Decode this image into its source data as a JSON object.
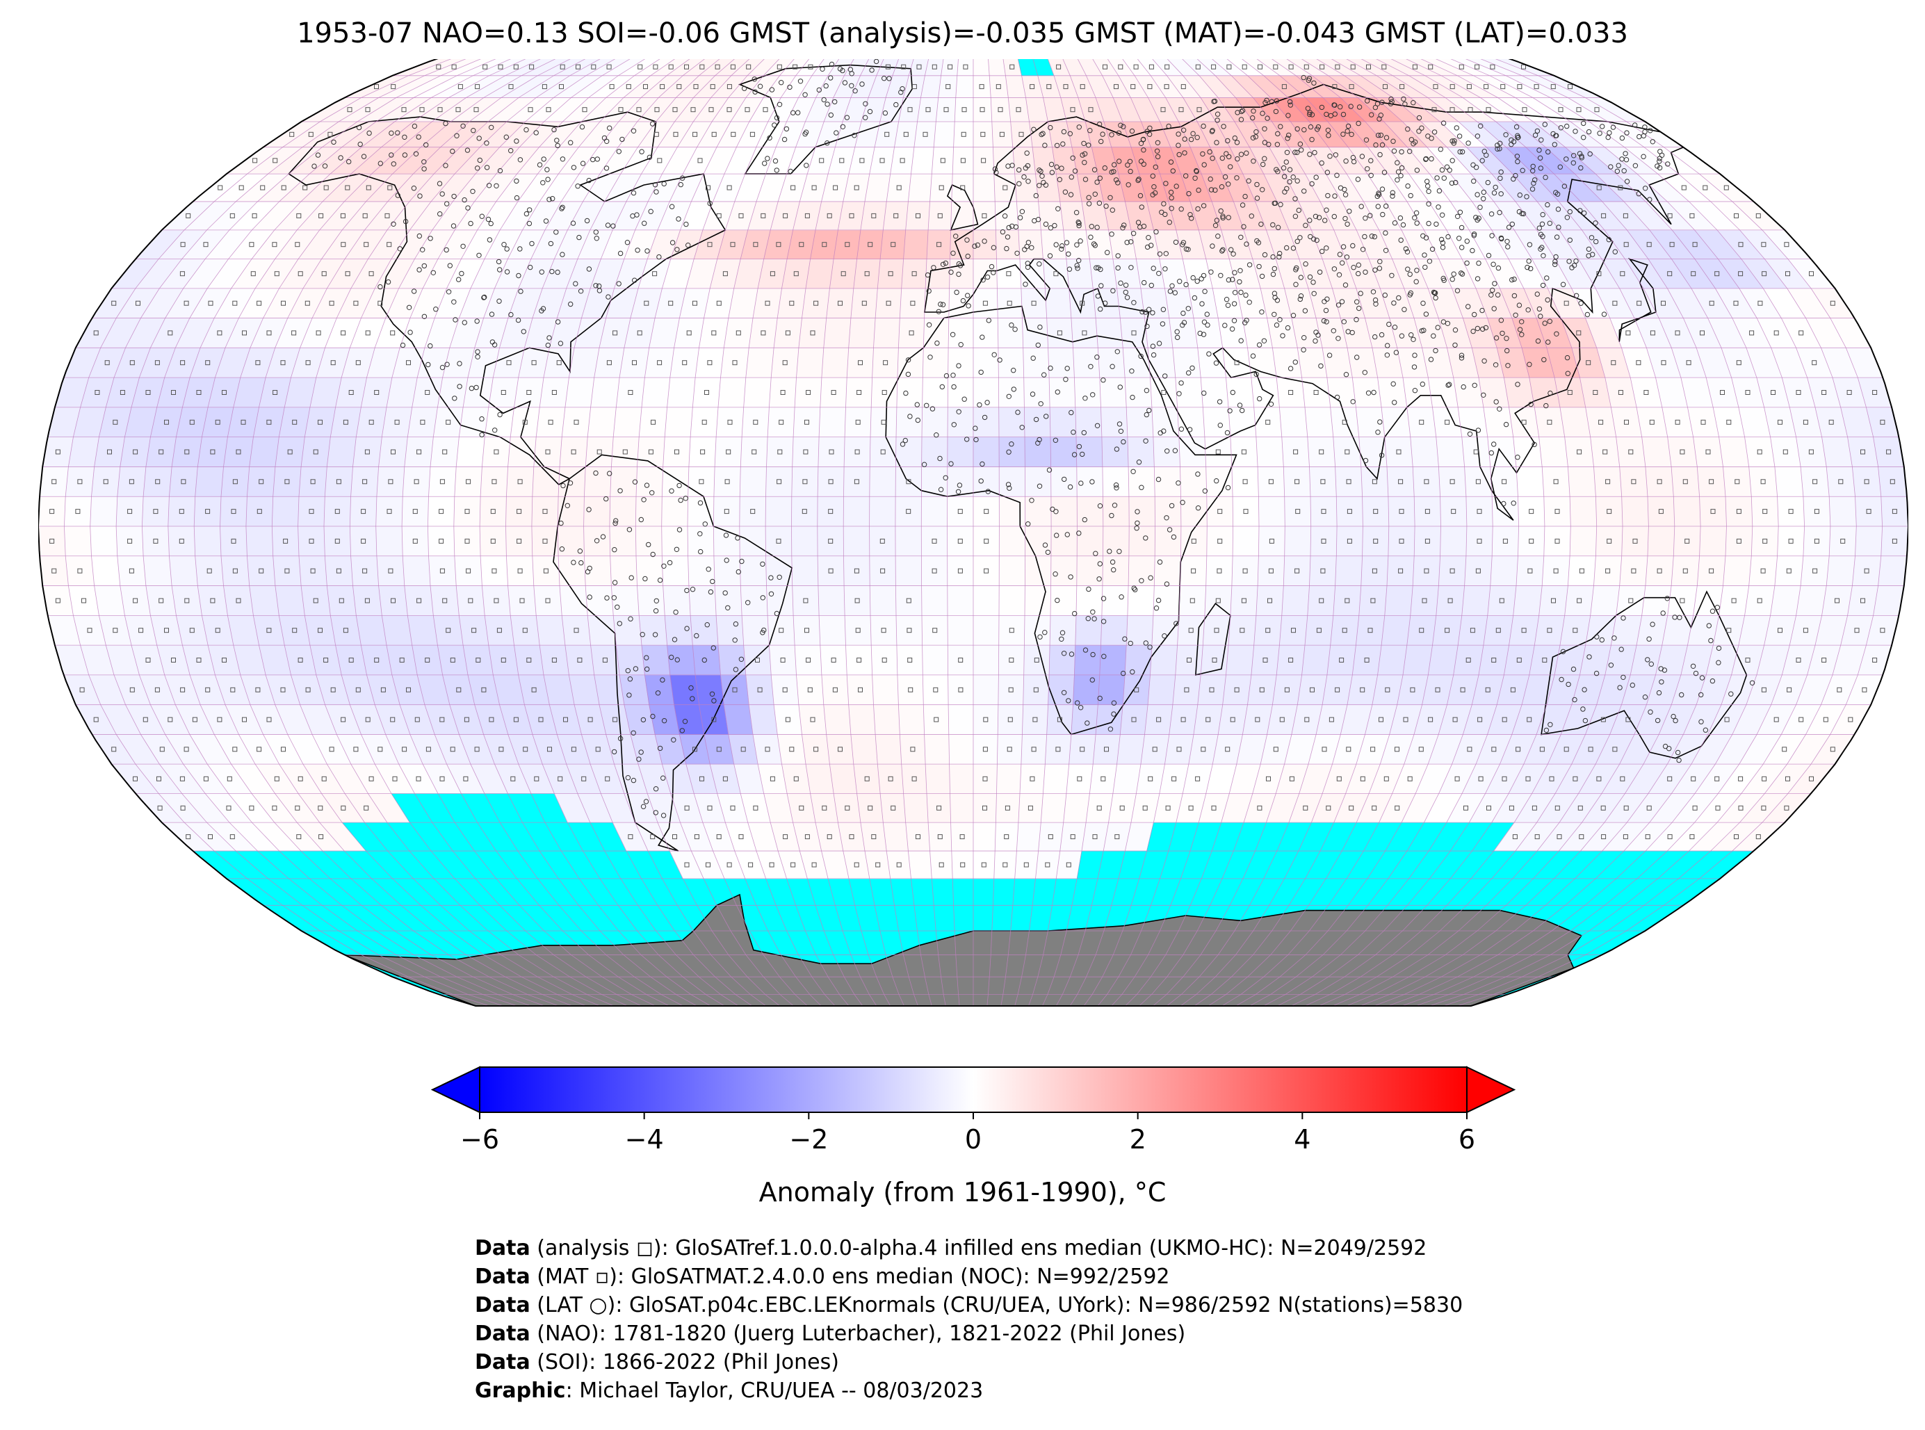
{
  "title": "1953-07 NAO=0.13 SOI=-0.06 GMST (analysis)=-0.035 GMST (MAT)=-0.043 GMST (LAT)=0.033",
  "colors": {
    "negative": "#0000ff",
    "neutral": "#ffffff",
    "positive": "#ff0000",
    "sea_ice": "#00ffff",
    "antarctica": "#808080",
    "grid": "#c080c0",
    "coastline": "#000000"
  },
  "colorbar": {
    "min": -6,
    "max": 6,
    "extend": "both",
    "ticks": [
      "−6",
      "−4",
      "−2",
      "0",
      "2",
      "4",
      "6"
    ],
    "label": "Anomaly (from 1961-1990), °C"
  },
  "map": {
    "projection": "robinson",
    "grid_resolution_deg": 5,
    "markers": {
      "analysis": "square",
      "mat": "small square",
      "lat": "circle"
    },
    "anomaly_regions": [
      {
        "region": "Eastern Europe / Western Russia",
        "anomaly_c": 2.5
      },
      {
        "region": "Northern Siberia",
        "anomaly_c": 3.0
      },
      {
        "region": "North-west Canada / Alaska",
        "anomaly_c": 1.0
      },
      {
        "region": "Southern South America",
        "anomaly_c": -3.5
      },
      {
        "region": "Southern Africa",
        "anomaly_c": -2.0
      },
      {
        "region": "Sahel",
        "anomaly_c": -1.5
      },
      {
        "region": "East Siberia",
        "anomaly_c": -2.0
      },
      {
        "region": "Eastern China",
        "anomaly_c": 2.0
      }
    ]
  },
  "credits": [
    {
      "key": "Data",
      "text": " (analysis ◻): GloSATref.1.0.0.0-alpha.4 infilled ens median (UKMO-HC): N=2049/2592"
    },
    {
      "key": "Data",
      "text": " (MAT ▫): GloSATMAT.2.4.0.0 ens median (NOC): N=992/2592"
    },
    {
      "key": "Data",
      "text": " (LAT ○): GloSAT.p04c.EBC.LEKnormals (CRU/UEA, UYork): N=986/2592 N(stations)=5830"
    },
    {
      "key": "Data",
      "text": " (NAO): 1781-1820 (Juerg Luterbacher), 1821-2022 (Phil Jones)"
    },
    {
      "key": "Data",
      "text": " (SOI): 1866-2022 (Phil Jones)"
    },
    {
      "key": "Graphic",
      "text": ": Michael Taylor, CRU/UEA -- 08/03/2023"
    }
  ]
}
